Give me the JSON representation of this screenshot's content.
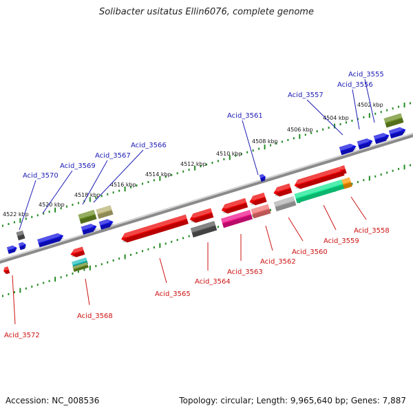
{
  "title": "Solibacter usitatus Ellin6076, complete genome",
  "footer": {
    "accession": "Accession: NC_008536",
    "topology": "Topology: circular; Length: 9,965,640 bp; Genes: 7,887"
  },
  "colors": {
    "forward_label": "#1a1ab4",
    "reverse_label": "#cc1111",
    "tick": "#228b22",
    "backbone": "#888888"
  },
  "kbp_labels": [
    "4522 kbp",
    "4520 kbp",
    "4518 kbp",
    "4516 kbp",
    "4514 kbp",
    "4512 kbp",
    "4510 kbp",
    "4508 kbp",
    "4506 kbp",
    "4504 kbp",
    "4502 kbp"
  ],
  "forward_genes": [
    "Acid_3570",
    "Acid_3569",
    "Acid_3567",
    "Acid_3566",
    "Acid_3561",
    "Acid_3557",
    "Acid_3556",
    "Acid_3555"
  ],
  "reverse_genes": [
    "Acid_3572",
    "Acid_3568",
    "Acid_3565",
    "Acid_3564",
    "Acid_3563",
    "Acid_3562",
    "Acid_3560",
    "Acid_3559",
    "Acid_3558"
  ]
}
